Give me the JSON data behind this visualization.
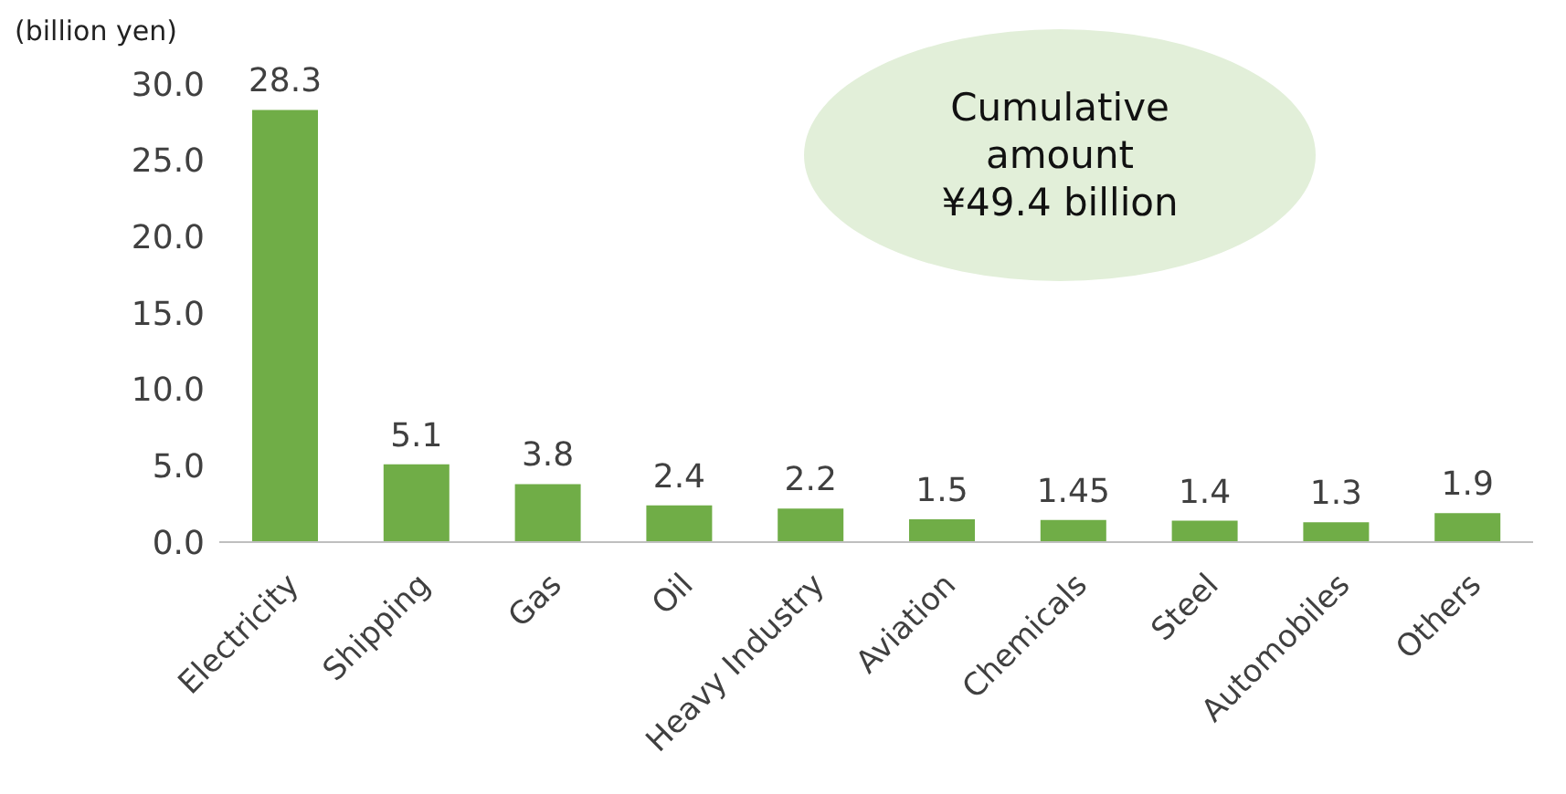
{
  "chart_data": {
    "type": "bar",
    "ylabel": "(billion yen)",
    "categories": [
      "Electricity",
      "Shipping",
      "Gas",
      "Oil",
      "Heavy Industry",
      "Aviation",
      "Chemicals",
      "Steel",
      "Automobiles",
      "Others"
    ],
    "values": [
      28.3,
      5.1,
      3.8,
      2.4,
      2.2,
      1.5,
      1.45,
      1.4,
      1.3,
      1.9
    ],
    "color": "#70ad47",
    "ylim": [
      0,
      30
    ],
    "yticks": [
      {
        "value": 0,
        "label": "0.0"
      },
      {
        "value": 5,
        "label": "5.0"
      },
      {
        "value": 10,
        "label": "10.0"
      },
      {
        "value": 15,
        "label": "15.0"
      },
      {
        "value": 20,
        "label": "20.0"
      },
      {
        "value": 25,
        "label": "25.0"
      },
      {
        "value": 30,
        "label": "30.0"
      }
    ],
    "data_labels": true,
    "grid": false,
    "legend": false,
    "annotations": [
      "Cumulative\namount\n¥49.4 billion"
    ]
  }
}
